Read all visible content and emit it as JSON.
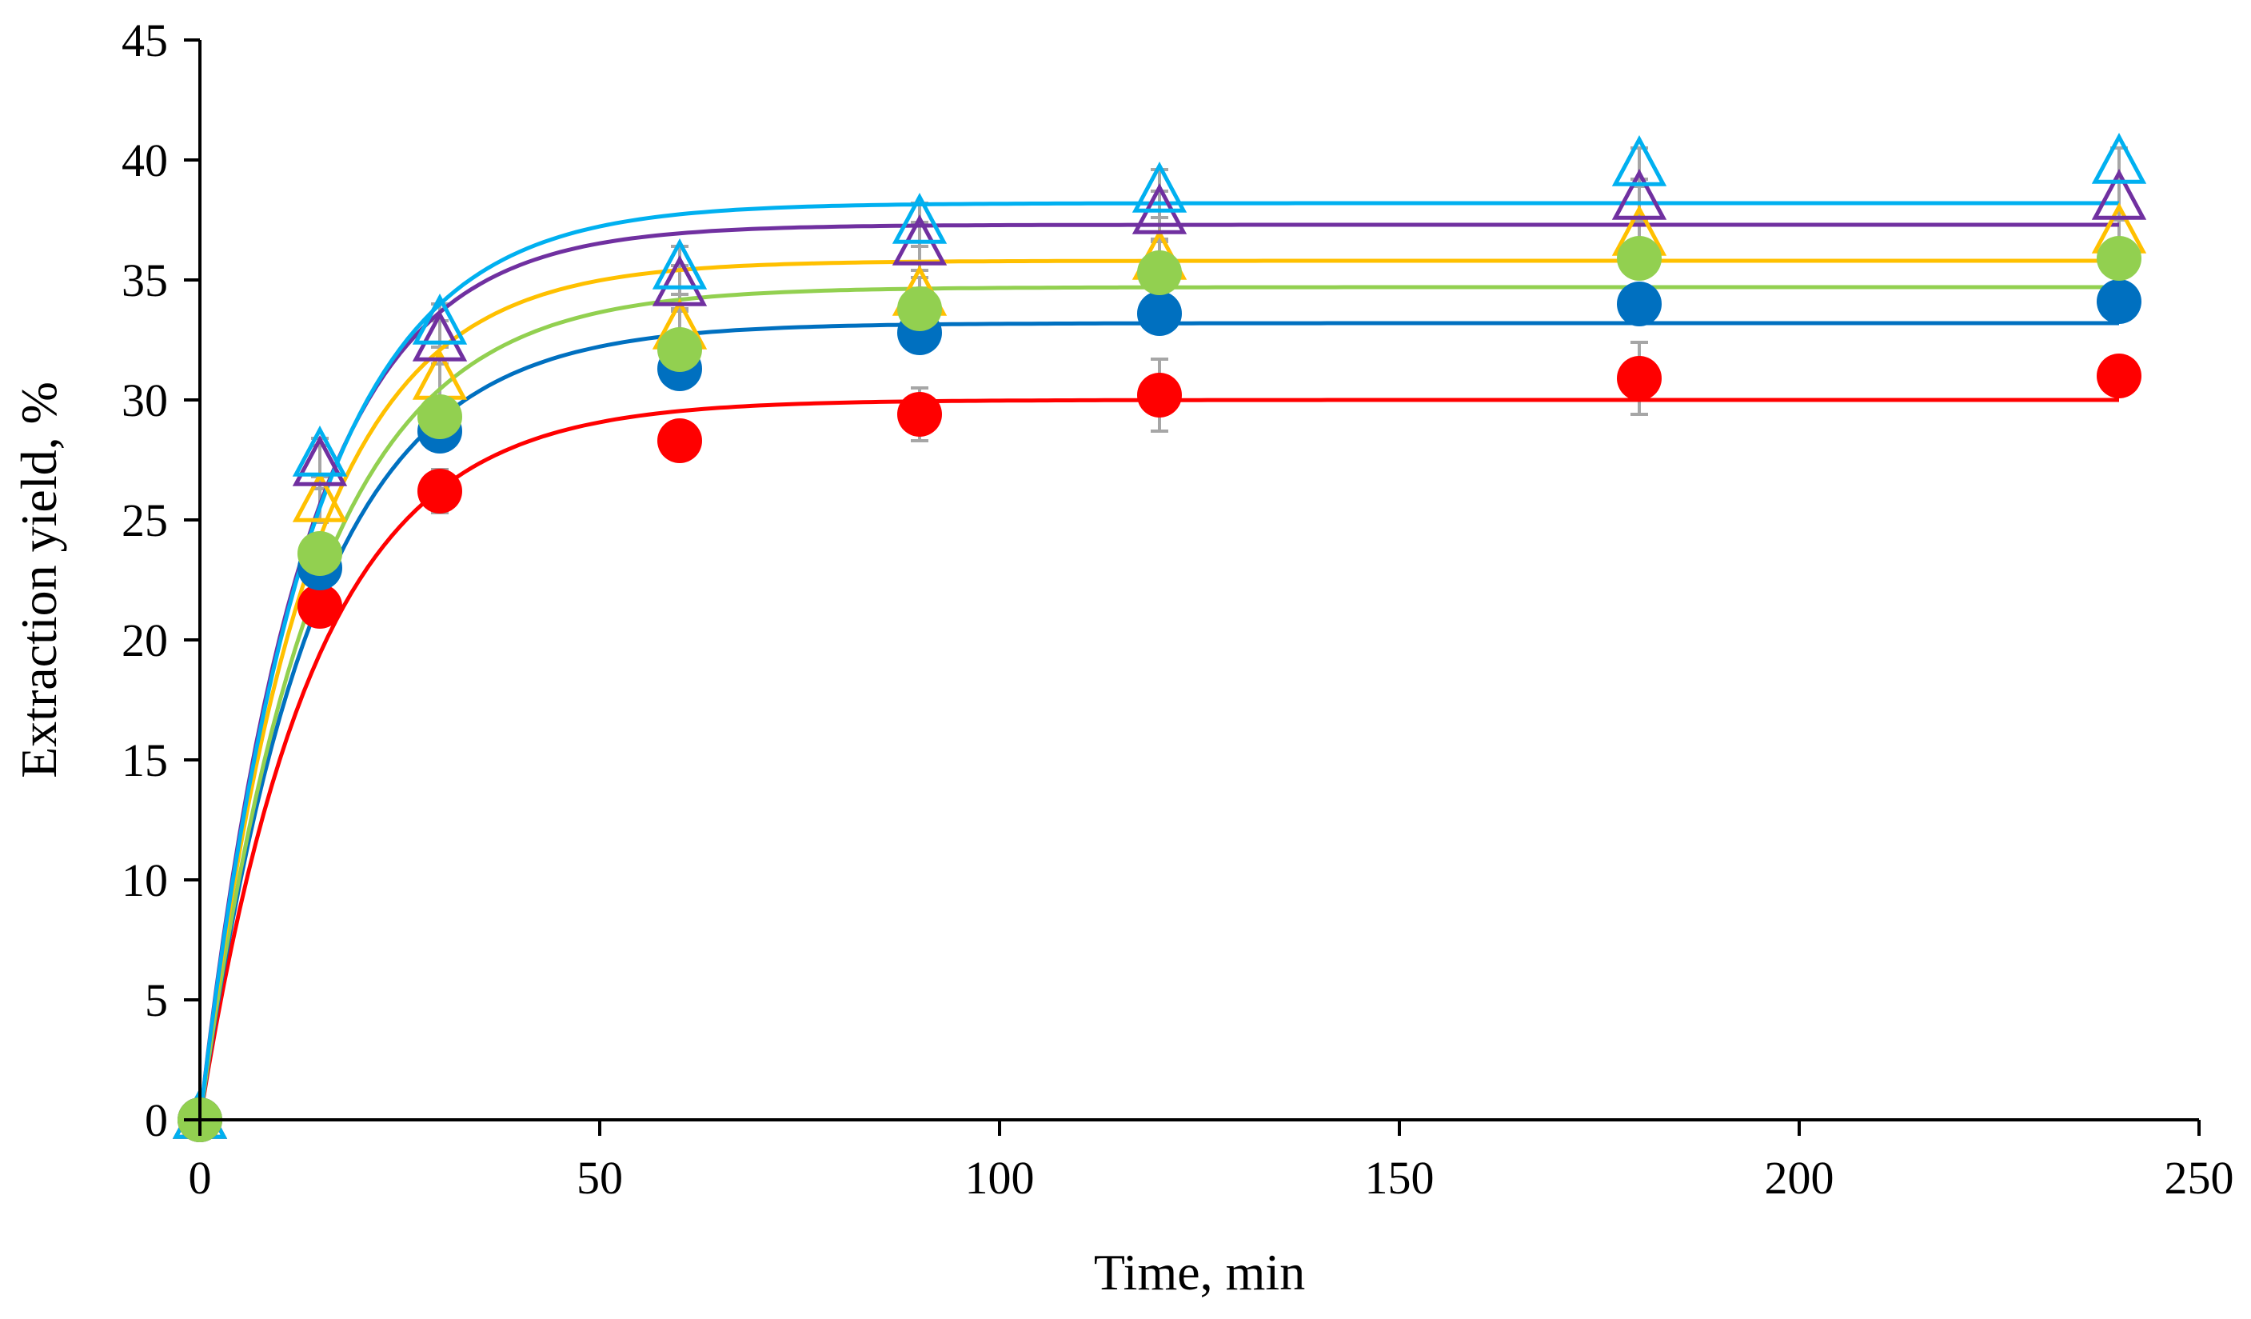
{
  "chart_data": {
    "type": "scatter",
    "title": "",
    "xlabel": "Time, min",
    "ylabel": "Extraction yield, %",
    "xlim": [
      0,
      250
    ],
    "ylim": [
      0,
      45
    ],
    "x_ticks": [
      0,
      50,
      100,
      150,
      200,
      250
    ],
    "y_ticks": [
      0,
      5,
      10,
      15,
      20,
      25,
      30,
      35,
      40,
      45
    ],
    "x_tick_labels": [
      "0",
      "50",
      "100",
      "150",
      "200",
      "250"
    ],
    "y_tick_labels": [
      "0",
      "5",
      "10",
      "15",
      "20",
      "25",
      "30",
      "35",
      "40",
      "45"
    ],
    "grid": false,
    "legend": "none",
    "x": [
      0,
      15,
      30,
      60,
      90,
      120,
      180,
      240
    ],
    "series": [
      {
        "name": "red circles",
        "marker": "circle",
        "color": "#ff0000",
        "values": [
          0,
          21.4,
          26.2,
          28.3,
          29.4,
          30.2,
          30.9,
          31.0
        ],
        "errors": [
          0,
          0.6,
          0.9,
          0.6,
          1.1,
          1.5,
          1.5,
          0.5
        ],
        "fit": {
          "ymax": 30.0,
          "k": 0.0695
        }
      },
      {
        "name": "blue circles",
        "marker": "circle",
        "color": "#0070c0",
        "values": [
          0,
          23.0,
          28.7,
          31.3,
          32.8,
          33.6,
          34.0,
          34.1
        ],
        "errors": [
          0,
          0.6,
          0.8,
          0.8,
          0.7,
          0.7,
          0.6,
          0.5
        ],
        "fit": {
          "ymax": 33.2,
          "k": 0.0705
        }
      },
      {
        "name": "green circles",
        "marker": "circle",
        "color": "#92d050",
        "values": [
          0,
          23.6,
          29.3,
          32.1,
          33.8,
          35.3,
          35.9,
          35.9
        ],
        "errors": [
          0,
          0.6,
          0.8,
          0.8,
          0.8,
          0.8,
          0.7,
          0.6
        ],
        "fit": {
          "ymax": 34.7,
          "k": 0.07
        }
      },
      {
        "name": "yellow triangles",
        "marker": "triangle",
        "color": "#ffc000",
        "values": [
          0,
          25.7,
          30.8,
          32.9,
          34.3,
          35.8,
          36.8,
          36.9
        ],
        "errors": [
          0,
          0.8,
          0.9,
          0.8,
          0.8,
          0.8,
          0.7,
          0.7
        ],
        "fit": {
          "ymax": 35.8,
          "k": 0.0755
        }
      },
      {
        "name": "purple triangles",
        "marker": "triangle",
        "color": "#7030a0",
        "values": [
          0,
          27.2,
          32.4,
          34.7,
          36.4,
          37.7,
          38.3,
          38.3
        ],
        "errors": [
          0,
          0.9,
          0.9,
          0.9,
          1.0,
          1.0,
          0.9,
          0.8
        ],
        "fit": {
          "ymax": 37.3,
          "k": 0.0775
        }
      },
      {
        "name": "light blue triangles",
        "marker": "triangle",
        "color": "#00b0f0",
        "values": [
          0,
          27.6,
          33.1,
          35.4,
          37.3,
          38.6,
          39.7,
          39.8
        ],
        "errors": [
          0,
          0.8,
          0.9,
          1.0,
          0.9,
          1.0,
          0.8,
          0.7
        ],
        "fit": {
          "ymax": 38.2,
          "k": 0.0735
        }
      }
    ],
    "error_bar_color": "#a6a6a6"
  }
}
